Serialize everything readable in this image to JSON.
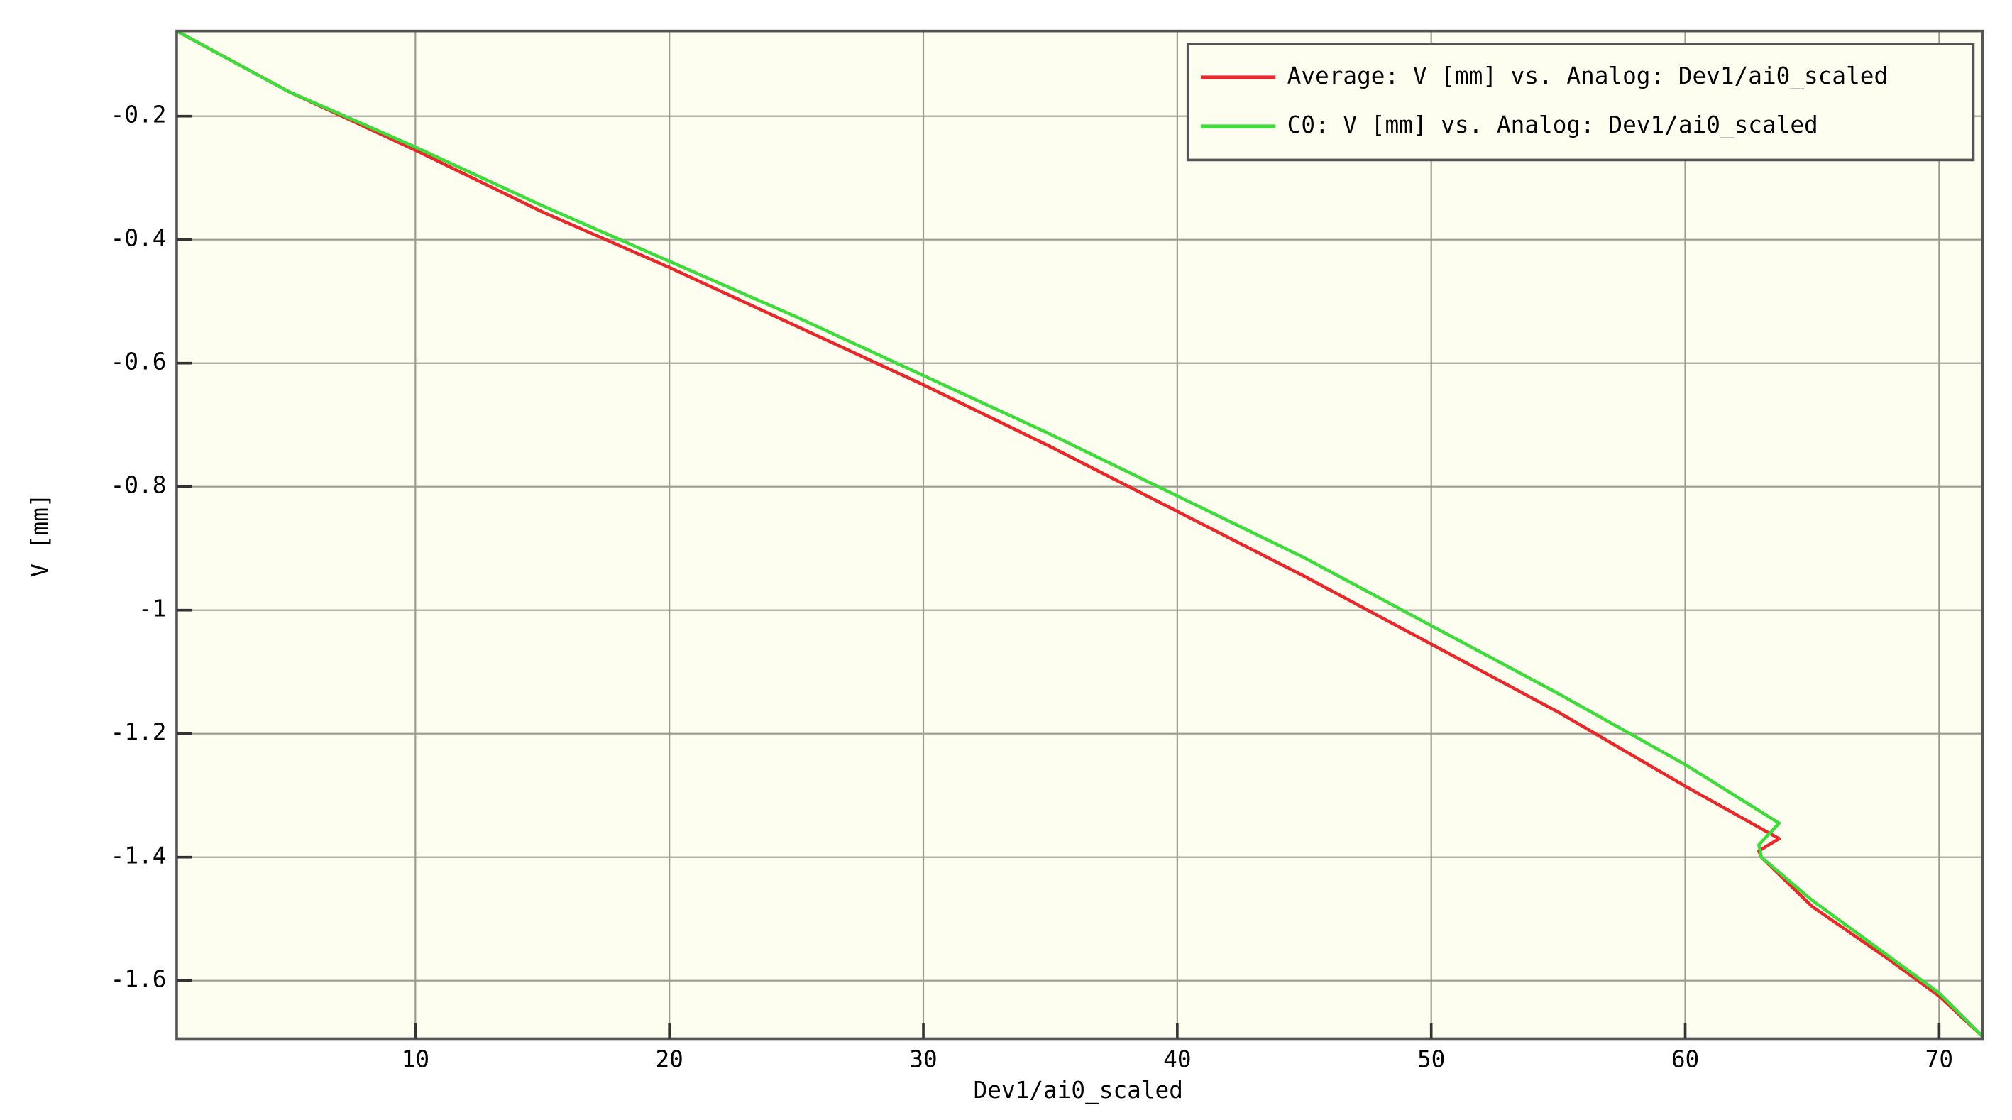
{
  "chart_data": {
    "type": "line",
    "x_label": "Dev1/ai0_scaled",
    "y_label": "V [mm]",
    "x": [
      0.6,
      5,
      10,
      15,
      20,
      25,
      30,
      35,
      40,
      45,
      50,
      55,
      60,
      63.7,
      62.9,
      63,
      65,
      68,
      70,
      71.7
    ],
    "series": [
      {
        "name": "Average: V [mm] vs. Analog: Dev1/ai0_scaled",
        "color": "#e8282a",
        "values": [
          -0.062,
          -0.16,
          -0.255,
          -0.355,
          -0.445,
          -0.54,
          -0.635,
          -0.735,
          -0.84,
          -0.945,
          -1.055,
          -1.165,
          -1.285,
          -1.37,
          -1.39,
          -1.4,
          -1.48,
          -1.565,
          -1.625,
          -1.69
        ]
      },
      {
        "name": "C0: V [mm] vs. Analog: Dev1/ai0_scaled",
        "color": "#3ddc3a",
        "values": [
          -0.062,
          -0.16,
          -0.25,
          -0.345,
          -0.435,
          -0.525,
          -0.62,
          -0.715,
          -0.815,
          -0.915,
          -1.025,
          -1.135,
          -1.25,
          -1.345,
          -1.38,
          -1.4,
          -1.47,
          -1.56,
          -1.62,
          -1.69
        ]
      }
    ],
    "xlim": [
      0.6,
      71.7
    ],
    "ylim": [
      -1.694,
      -0.062
    ],
    "xticks": [
      10,
      20,
      30,
      40,
      50,
      60,
      70
    ],
    "yticks": [
      -0.2,
      -0.4,
      -0.6,
      -0.8,
      -1,
      -1.2,
      -1.4,
      -1.6
    ],
    "grid": true,
    "legend": "upper right"
  }
}
